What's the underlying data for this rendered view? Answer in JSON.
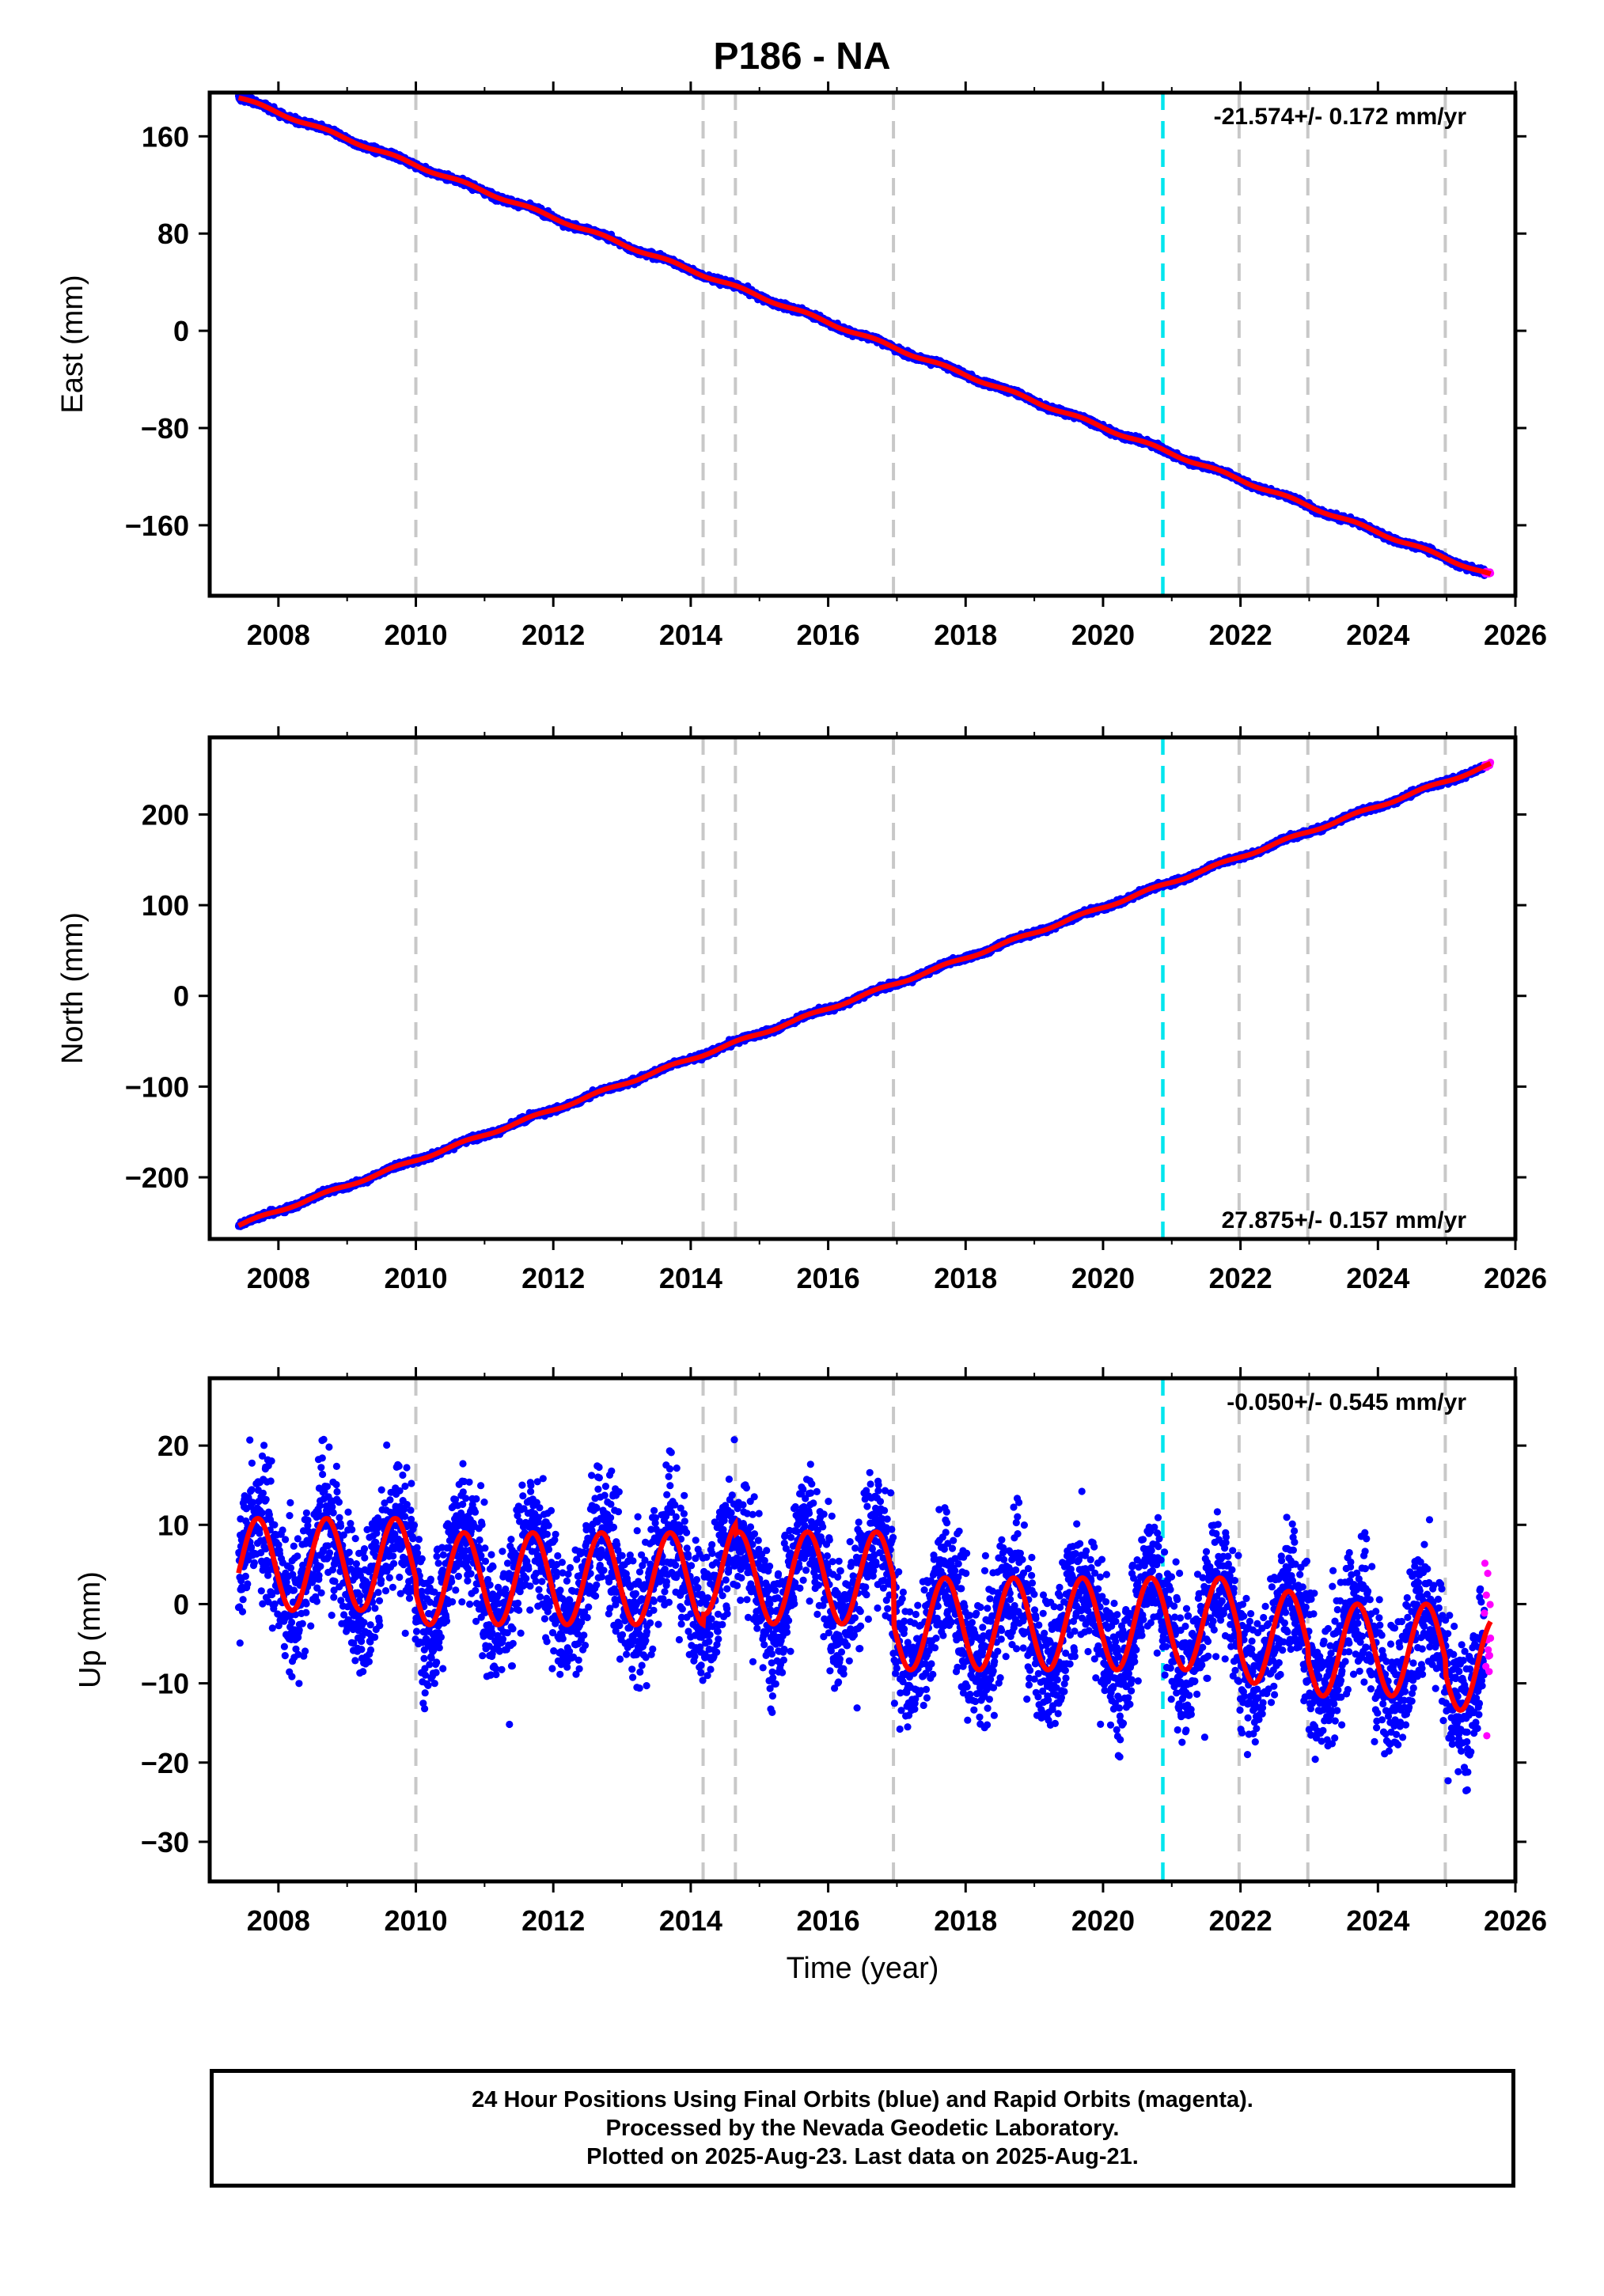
{
  "title": "P186 - NA",
  "colors": {
    "final_orbits": "#0000ff",
    "rapid_orbits": "#ff00ff",
    "model_fit": "#ff0000",
    "equipment_change": "#c8c8c8",
    "earthquake": "#00e5ee"
  },
  "caption": {
    "line1": "24 Hour Positions Using Final Orbits (blue) and Rapid Orbits (magenta).",
    "line2": "Processed by the Nevada Geodetic Laboratory.",
    "line3": "Plotted on 2025-Aug-23. Last data on 2025-Aug-21."
  },
  "chart_data": [
    {
      "type": "scatter",
      "panel": "east",
      "ylabel": "East (mm)",
      "xlabel": "",
      "xlim": [
        2007.0,
        2026.0
      ],
      "ylim": [
        -218,
        196
      ],
      "xticks": [
        2008,
        2010,
        2012,
        2014,
        2016,
        2018,
        2020,
        2022,
        2024,
        2026
      ],
      "yticks": [
        160,
        80,
        0,
        -80,
        -160
      ],
      "ytick_labels": [
        "160",
        "80",
        "0",
        "−80",
        "−160"
      ],
      "rate_text": "-21.574+/- 0.172 mm/yr",
      "rate_position": "top-right",
      "model": {
        "start_year": 2007.42,
        "start_value": 192.0,
        "rate": -21.574,
        "seasonal_amp": 1.2
      },
      "equipment_change_lines": [
        2010.0,
        2014.18,
        2014.65,
        2016.95,
        2021.98,
        2022.98,
        2024.98
      ],
      "earthquake_lines": [
        2020.87
      ],
      "series": [
        {
          "name": "Final Orbits (blue)",
          "x_range": [
            2007.42,
            2025.55
          ],
          "noise_mm": 2.0
        },
        {
          "name": "Rapid Orbits (magenta)",
          "x_range": [
            2025.55,
            2025.64
          ],
          "noise_mm": 2.0
        }
      ]
    },
    {
      "type": "scatter",
      "panel": "north",
      "ylabel": "North (mm)",
      "xlabel": "",
      "xlim": [
        2007.0,
        2026.0
      ],
      "ylim": [
        -268,
        285
      ],
      "xticks": [
        2008,
        2010,
        2012,
        2014,
        2016,
        2018,
        2020,
        2022,
        2024,
        2026
      ],
      "yticks": [
        200,
        100,
        0,
        -100,
        -200
      ],
      "ytick_labels": [
        "200",
        "100",
        "0",
        "−100",
        "−200"
      ],
      "rate_text": "27.875+/- 0.157 mm/yr",
      "rate_position": "bottom-right",
      "model": {
        "start_year": 2007.42,
        "start_value": -253.0,
        "rate": 27.875,
        "seasonal_amp": 1.5
      },
      "equipment_change_lines": [
        2010.0,
        2014.18,
        2014.65,
        2016.95,
        2021.98,
        2022.98,
        2024.98
      ],
      "earthquake_lines": [
        2020.87
      ],
      "series": [
        {
          "name": "Final Orbits (blue)",
          "x_range": [
            2007.42,
            2025.55
          ],
          "noise_mm": 2.5
        },
        {
          "name": "Rapid Orbits (magenta)",
          "x_range": [
            2025.55,
            2025.64
          ],
          "noise_mm": 2.5
        }
      ]
    },
    {
      "type": "scatter",
      "panel": "up",
      "ylabel": "Up (mm)",
      "xlabel": "Time (year)",
      "xlim": [
        2007.0,
        2026.0
      ],
      "ylim": [
        -35,
        28.5
      ],
      "xticks": [
        2008,
        2010,
        2012,
        2014,
        2016,
        2018,
        2020,
        2022,
        2024,
        2026
      ],
      "yticks": [
        20,
        10,
        0,
        -10,
        -20,
        -30
      ],
      "ytick_labels": [
        "20",
        "10",
        "0",
        "−10",
        "−20",
        "−30"
      ],
      "rate_text": "-0.050+/- 0.545 mm/yr",
      "rate_position": "top-right",
      "model": {
        "seasonal_amp": 5.8,
        "offsets": [
          {
            "start": 2007.0,
            "end": 2010.0,
            "mean": 5.0
          },
          {
            "start": 2010.0,
            "end": 2014.18,
            "mean": 3.2
          },
          {
            "start": 2014.18,
            "end": 2014.65,
            "mean": 4.5
          },
          {
            "start": 2014.65,
            "end": 2016.95,
            "mean": 3.3
          },
          {
            "start": 2016.95,
            "end": 2021.98,
            "mean": -2.5
          },
          {
            "start": 2021.98,
            "end": 2022.98,
            "mean": -4.2
          },
          {
            "start": 2022.98,
            "end": 2024.98,
            "mean": -5.8
          },
          {
            "start": 2024.98,
            "end": 2026.0,
            "mean": -7.6
          }
        ]
      },
      "equipment_change_lines": [
        2010.0,
        2014.18,
        2014.65,
        2016.95,
        2021.98,
        2022.98,
        2024.98
      ],
      "earthquake_lines": [
        2020.87
      ],
      "series": [
        {
          "name": "Final Orbits (blue)",
          "x_range": [
            2007.42,
            2025.55
          ],
          "noise_mm": 4.2
        },
        {
          "name": "Rapid Orbits (magenta)",
          "x_range": [
            2025.55,
            2025.64
          ],
          "noise_mm": 6.0
        }
      ]
    }
  ]
}
